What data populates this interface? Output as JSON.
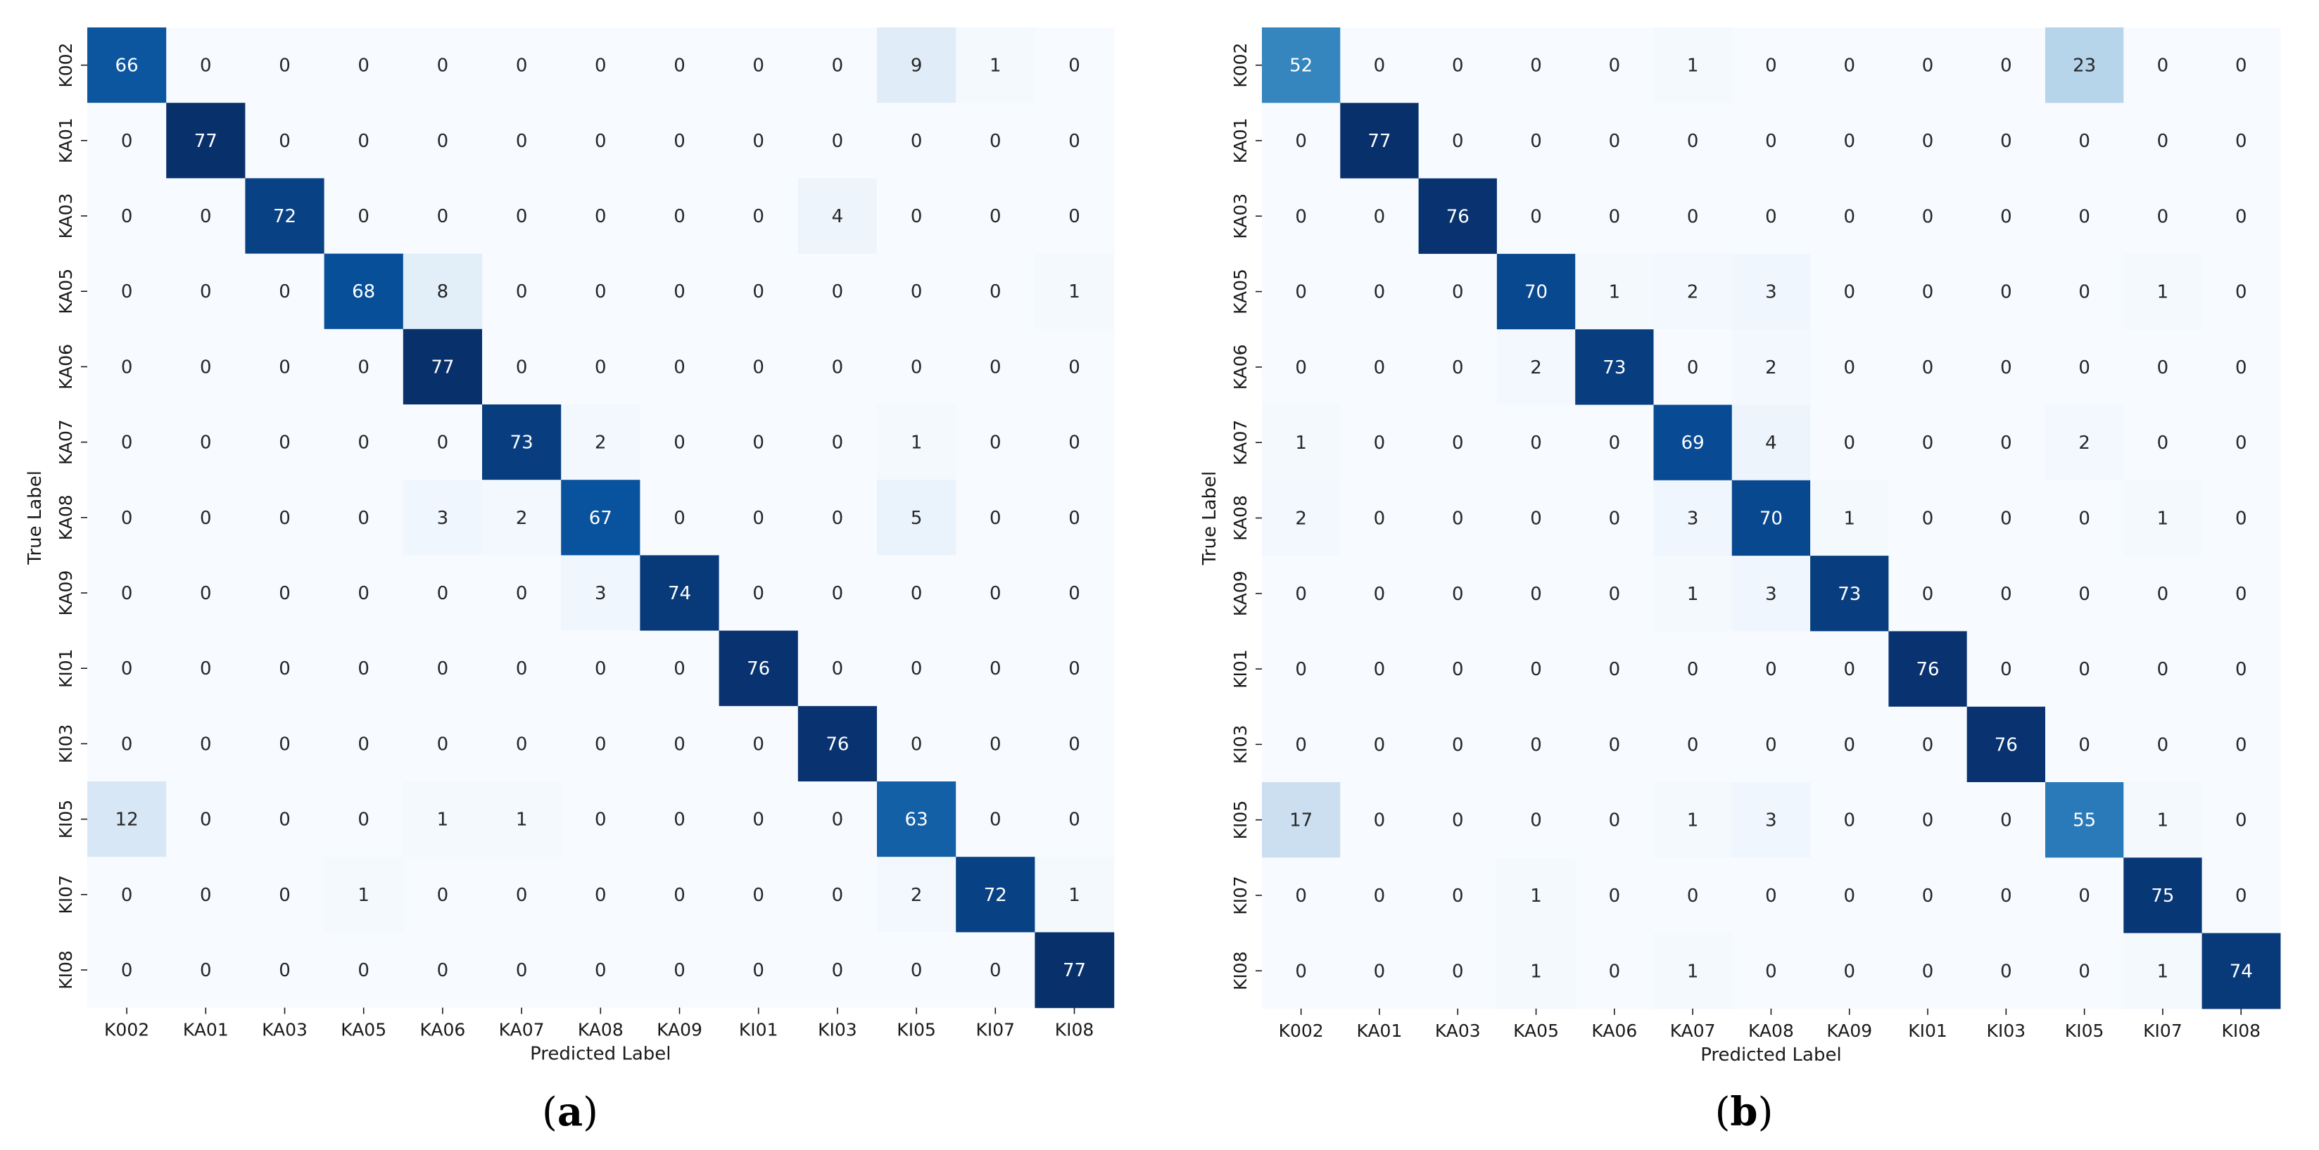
{
  "chart_data": [
    {
      "type": "heatmap",
      "panel_label": "(a)",
      "panel_letter": "a",
      "xlabel": "Predicted Label",
      "ylabel": "True Label",
      "colormap": "Blues",
      "value_range": [
        0,
        77
      ],
      "x_categories": [
        "K002",
        "KA01",
        "KA03",
        "KA05",
        "KA06",
        "KA07",
        "KA08",
        "KA09",
        "KI01",
        "KI03",
        "KI05",
        "KI07",
        "KI08"
      ],
      "y_categories": [
        "K002",
        "KA01",
        "KA03",
        "KA05",
        "KA06",
        "KA07",
        "KA08",
        "KA09",
        "KI01",
        "KI03",
        "KI05",
        "KI07",
        "KI08"
      ],
      "matrix": [
        [
          66,
          0,
          0,
          0,
          0,
          0,
          0,
          0,
          0,
          0,
          9,
          1,
          0
        ],
        [
          0,
          77,
          0,
          0,
          0,
          0,
          0,
          0,
          0,
          0,
          0,
          0,
          0
        ],
        [
          0,
          0,
          72,
          0,
          0,
          0,
          0,
          0,
          0,
          4,
          0,
          0,
          0
        ],
        [
          0,
          0,
          0,
          68,
          8,
          0,
          0,
          0,
          0,
          0,
          0,
          0,
          1
        ],
        [
          0,
          0,
          0,
          0,
          77,
          0,
          0,
          0,
          0,
          0,
          0,
          0,
          0
        ],
        [
          0,
          0,
          0,
          0,
          0,
          73,
          2,
          0,
          0,
          0,
          1,
          0,
          0
        ],
        [
          0,
          0,
          0,
          0,
          3,
          2,
          67,
          0,
          0,
          0,
          5,
          0,
          0
        ],
        [
          0,
          0,
          0,
          0,
          0,
          0,
          3,
          74,
          0,
          0,
          0,
          0,
          0
        ],
        [
          0,
          0,
          0,
          0,
          0,
          0,
          0,
          0,
          76,
          0,
          0,
          0,
          0
        ],
        [
          0,
          0,
          0,
          0,
          0,
          0,
          0,
          0,
          0,
          76,
          0,
          0,
          0
        ],
        [
          12,
          0,
          0,
          0,
          1,
          1,
          0,
          0,
          0,
          0,
          63,
          0,
          0
        ],
        [
          0,
          0,
          0,
          1,
          0,
          0,
          0,
          0,
          0,
          0,
          2,
          72,
          1
        ],
        [
          0,
          0,
          0,
          0,
          0,
          0,
          0,
          0,
          0,
          0,
          0,
          0,
          77
        ]
      ]
    },
    {
      "type": "heatmap",
      "panel_label": "(b)",
      "panel_letter": "b",
      "xlabel": "Predicted Label",
      "ylabel": "True Label",
      "colormap": "Blues",
      "value_range": [
        0,
        77
      ],
      "x_categories": [
        "K002",
        "KA01",
        "KA03",
        "KA05",
        "KA06",
        "KA07",
        "KA08",
        "KA09",
        "KI01",
        "KI03",
        "KI05",
        "KI07",
        "KI08"
      ],
      "y_categories": [
        "K002",
        "KA01",
        "KA03",
        "KA05",
        "KA06",
        "KA07",
        "KA08",
        "KA09",
        "KI01",
        "KI03",
        "KI05",
        "KI07",
        "KI08"
      ],
      "matrix": [
        [
          52,
          0,
          0,
          0,
          0,
          1,
          0,
          0,
          0,
          0,
          23,
          0,
          0
        ],
        [
          0,
          77,
          0,
          0,
          0,
          0,
          0,
          0,
          0,
          0,
          0,
          0,
          0
        ],
        [
          0,
          0,
          76,
          0,
          0,
          0,
          0,
          0,
          0,
          0,
          0,
          0,
          0
        ],
        [
          0,
          0,
          0,
          70,
          1,
          2,
          3,
          0,
          0,
          0,
          0,
          1,
          0
        ],
        [
          0,
          0,
          0,
          2,
          73,
          0,
          2,
          0,
          0,
          0,
          0,
          0,
          0
        ],
        [
          1,
          0,
          0,
          0,
          0,
          69,
          4,
          0,
          0,
          0,
          2,
          0,
          0
        ],
        [
          2,
          0,
          0,
          0,
          0,
          3,
          70,
          1,
          0,
          0,
          0,
          1,
          0
        ],
        [
          0,
          0,
          0,
          0,
          0,
          1,
          3,
          73,
          0,
          0,
          0,
          0,
          0
        ],
        [
          0,
          0,
          0,
          0,
          0,
          0,
          0,
          0,
          76,
          0,
          0,
          0,
          0
        ],
        [
          0,
          0,
          0,
          0,
          0,
          0,
          0,
          0,
          0,
          76,
          0,
          0,
          0
        ],
        [
          17,
          0,
          0,
          0,
          0,
          1,
          3,
          0,
          0,
          0,
          55,
          1,
          0
        ],
        [
          0,
          0,
          0,
          1,
          0,
          0,
          0,
          0,
          0,
          0,
          0,
          75,
          0
        ],
        [
          0,
          0,
          0,
          1,
          0,
          1,
          0,
          0,
          0,
          0,
          0,
          1,
          74
        ]
      ]
    }
  ]
}
